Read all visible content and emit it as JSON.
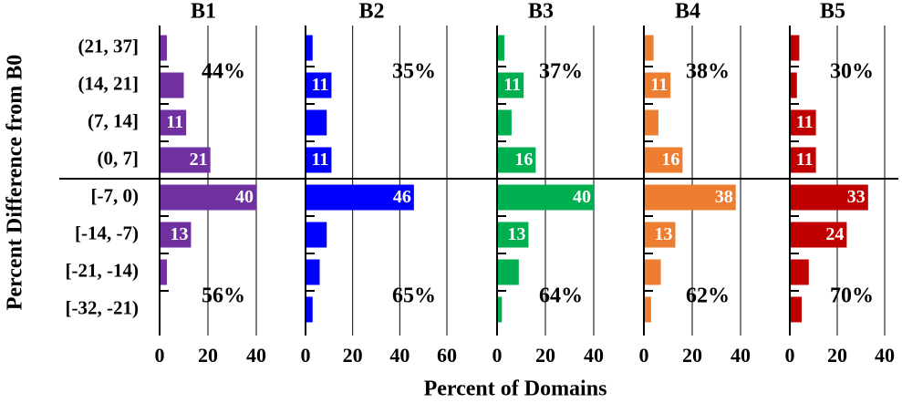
{
  "chart_data": [
    {
      "type": "bar",
      "orientation": "horizontal",
      "title": "B1",
      "color": "#7030a0",
      "categories": [
        "(21, 37]",
        "(14, 21]",
        "(7, 14]",
        "(0, 7]",
        "[-7, 0)",
        "[-14, -7)",
        "[-21, -14)",
        "[-32, -21)"
      ],
      "values": [
        3,
        10,
        11,
        21,
        40,
        13,
        3,
        0
      ],
      "value_labels": [
        null,
        null,
        "11",
        "21",
        "40",
        "13",
        null,
        null
      ],
      "xlim": [
        0,
        40
      ],
      "xticks": [
        0,
        20,
        40
      ],
      "grid": true,
      "annotations": [
        "44%",
        "56%"
      ]
    },
    {
      "type": "bar",
      "orientation": "horizontal",
      "title": "B2",
      "color": "#0000ff",
      "values": [
        3,
        11,
        9,
        11,
        46,
        9,
        6,
        3
      ],
      "value_labels": [
        null,
        "11",
        null,
        "11",
        "46",
        null,
        null,
        null
      ],
      "xlim": [
        0,
        60
      ],
      "xticks": [
        0,
        20,
        40,
        60
      ],
      "grid": true,
      "annotations": [
        "35%",
        "65%"
      ]
    },
    {
      "type": "bar",
      "orientation": "horizontal",
      "title": "B3",
      "color": "#00b050",
      "values": [
        3,
        11,
        6,
        16,
        40,
        13,
        9,
        2
      ],
      "value_labels": [
        null,
        "11",
        null,
        "16",
        "40",
        "13",
        null,
        null
      ],
      "xlim": [
        0,
        40
      ],
      "xticks": [
        0,
        20,
        40
      ],
      "grid": true,
      "annotations": [
        "37%",
        "64%"
      ]
    },
    {
      "type": "bar",
      "orientation": "horizontal",
      "title": "B4",
      "color": "#ed7d31",
      "values": [
        4,
        11,
        6,
        16,
        38,
        13,
        7,
        3
      ],
      "value_labels": [
        null,
        "11",
        null,
        "16",
        "38",
        "13",
        null,
        null
      ],
      "xlim": [
        0,
        40
      ],
      "xticks": [
        0,
        20,
        40
      ],
      "grid": true,
      "annotations": [
        "38%",
        "62%"
      ]
    },
    {
      "type": "bar",
      "orientation": "horizontal",
      "title": "B5",
      "color": "#c00000",
      "values": [
        4,
        3,
        11,
        11,
        33,
        24,
        8,
        5
      ],
      "value_labels": [
        null,
        null,
        "11",
        "11",
        "33",
        "24",
        null,
        null
      ],
      "xlim": [
        0,
        40
      ],
      "xticks": [
        0,
        20,
        40
      ],
      "grid": true,
      "annotations": [
        "30%",
        "70%"
      ]
    }
  ],
  "xlabel": "Percent of Domains",
  "ylabel": "Percent Difference from B0"
}
